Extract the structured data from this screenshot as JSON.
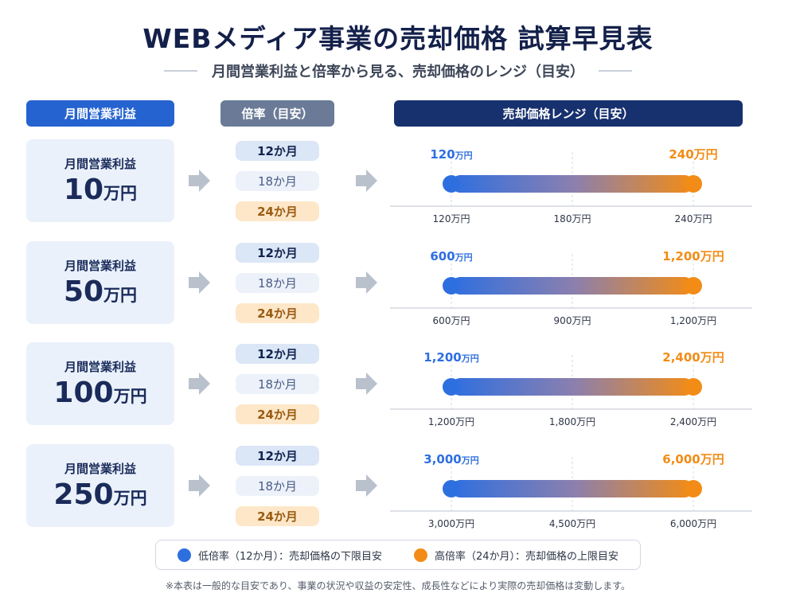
{
  "title": "WEBメディア事業の売却価格 試算早見表",
  "subtitle": "月間営業利益と倍率から見る、売却価格のレンジ（目安）",
  "headers": {
    "profit": "月間営業利益",
    "multiple": "倍率（目安）",
    "range": "売却価格レンジ（目安）"
  },
  "multiples": [
    "12か月",
    "18か月",
    "24か月"
  ],
  "colors": {
    "low": "#2e6fe0",
    "high": "#f28c16",
    "header_profit": "#2563d0",
    "header_multiple": "#6b7b97",
    "header_range": "#17306e"
  },
  "legend": {
    "low": "低倍率（12か月）：売却価格の下限目安",
    "high": "高倍率（24か月）：売却価格の上限目安"
  },
  "footnote": "※本表は一般的な目安であり、事業の状況や収益の安定性、成長性などにより実際の売却価格は変動します。",
  "chart_data": {
    "type": "table",
    "unit": "万円",
    "rows": [
      {
        "profit_label": "月間営業利益",
        "profit_value": "10",
        "profit_unit": "万円",
        "low": 120,
        "high": 240,
        "low_label": "120",
        "high_label": "240",
        "label_unit": "万円",
        "ticks": [
          "120万円",
          "180万円",
          "240万円"
        ]
      },
      {
        "profit_label": "月間営業利益",
        "profit_value": "50",
        "profit_unit": "万円",
        "low": 600,
        "high": 1200,
        "low_label": "600",
        "high_label": "1,200",
        "label_unit": "万円",
        "ticks": [
          "600万円",
          "900万円",
          "1,200万円"
        ]
      },
      {
        "profit_label": "月間営業利益",
        "profit_value": "100",
        "profit_unit": "万円",
        "low": 1200,
        "high": 2400,
        "low_label": "1,200",
        "high_label": "2,400",
        "label_unit": "万円",
        "ticks": [
          "1,200万円",
          "1,800万円",
          "2,400万円"
        ]
      },
      {
        "profit_label": "月間営業利益",
        "profit_value": "250",
        "profit_unit": "万円",
        "low": 3000,
        "high": 6000,
        "low_label": "3,000",
        "high_label": "6,000",
        "label_unit": "万円",
        "ticks": [
          "3,000万円",
          "4,500万円",
          "6,000万円"
        ]
      }
    ]
  }
}
